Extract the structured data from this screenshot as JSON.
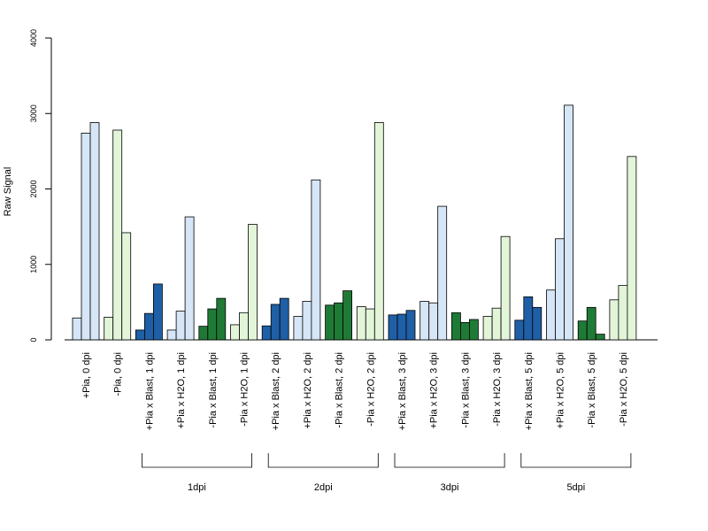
{
  "chart_data": {
    "type": "bar",
    "ylabel": "Raw Signal",
    "ylim": [
      0,
      4000
    ],
    "yticks": [
      0,
      1000,
      2000,
      3000,
      4000
    ],
    "ytick_labels": [
      "0",
      "1000",
      "2000",
      "3000",
      "4000"
    ],
    "grid": false,
    "legend": "none",
    "colors": {
      "dark_blue": "#1f5fa6",
      "light_blue": "#d6e6f7",
      "dark_green": "#1f7a36",
      "light_green": "#e3f5d9",
      "bar_border": "#000000"
    },
    "categories": [
      {
        "label": "+Pia, 0 dpi",
        "color": "light_blue",
        "values": [
          290,
          2740,
          2880
        ]
      },
      {
        "label": "-Pia, 0 dpi",
        "color": "light_green",
        "values": [
          300,
          2780,
          1420
        ]
      },
      {
        "label": "+Pia x Blast, 1 dpi",
        "color": "dark_blue",
        "values": [
          130,
          350,
          740
        ]
      },
      {
        "label": "+Pia x H2O, 1 dpi",
        "color": "light_blue",
        "values": [
          130,
          380,
          1630
        ]
      },
      {
        "label": "-Pia x Blast, 1 dpi",
        "color": "dark_green",
        "values": [
          180,
          410,
          550
        ]
      },
      {
        "label": "-Pia x H2O, 1 dpi",
        "color": "light_green",
        "values": [
          200,
          360,
          1530
        ]
      },
      {
        "label": "+Pia x Blast, 2 dpi",
        "color": "dark_blue",
        "values": [
          185,
          470,
          550
        ]
      },
      {
        "label": "+Pia x H2O, 2 dpi",
        "color": "light_blue",
        "values": [
          310,
          510,
          2120
        ]
      },
      {
        "label": "-Pia x Blast, 2 dpi",
        "color": "dark_green",
        "values": [
          460,
          490,
          650
        ]
      },
      {
        "label": "-Pia x H2O, 2 dpi",
        "color": "light_green",
        "values": [
          440,
          410,
          2880
        ]
      },
      {
        "label": "+Pia x Blast, 3 dpi",
        "color": "dark_blue",
        "values": [
          330,
          340,
          390
        ]
      },
      {
        "label": "+Pia x H2O, 3 dpi",
        "color": "light_blue",
        "values": [
          510,
          490,
          1770
        ]
      },
      {
        "label": "-Pia x Blast, 3 dpi",
        "color": "dark_green",
        "values": [
          360,
          230,
          270
        ]
      },
      {
        "label": "-Pia x H2O, 3 dpi",
        "color": "light_green",
        "values": [
          310,
          420,
          1370
        ]
      },
      {
        "label": "+Pia x Blast, 5 dpi",
        "color": "dark_blue",
        "values": [
          260,
          570,
          430
        ]
      },
      {
        "label": "+Pia x H2O, 5 dpi",
        "color": "light_blue",
        "values": [
          660,
          1340,
          3110
        ]
      },
      {
        "label": "-Pia x Blast, 5 dpi",
        "color": "dark_green",
        "values": [
          250,
          430,
          75
        ]
      },
      {
        "label": "-Pia x H2O, 5 dpi",
        "color": "light_green",
        "values": [
          530,
          720,
          2430
        ]
      }
    ],
    "groups": [
      {
        "label": "1dpi",
        "from": 2,
        "to": 5
      },
      {
        "label": "2dpi",
        "from": 6,
        "to": 9
      },
      {
        "label": "3dpi",
        "from": 10,
        "to": 13
      },
      {
        "label": "5dpi",
        "from": 14,
        "to": 17
      }
    ]
  }
}
